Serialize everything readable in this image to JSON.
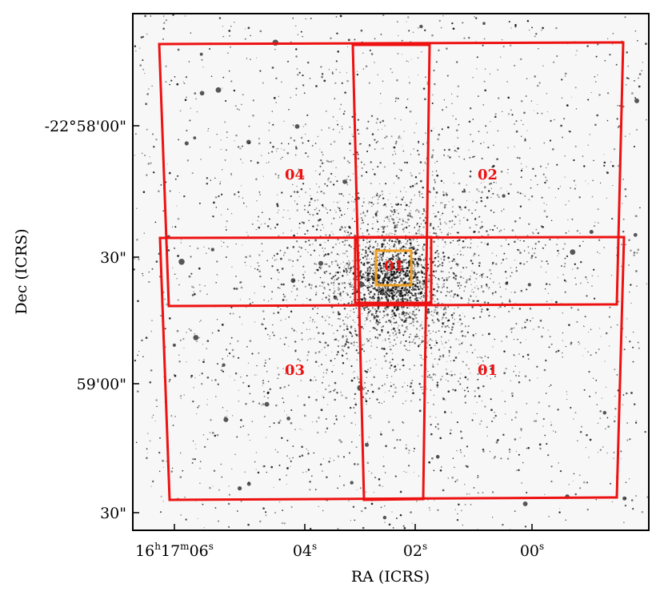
{
  "colors": {
    "field_outline": "#ee1111",
    "inner_outline": "#f0a020",
    "axis": "#000000",
    "stars": "#111111"
  },
  "axes": {
    "xlabel": "RA (ICRS)",
    "ylabel": "Dec (ICRS)",
    "x_ticks": [
      {
        "pre": "16",
        "sup1": "h",
        "mid1": "17",
        "sup2": "m",
        "mid2": "06",
        "sup3": "s"
      },
      {
        "pre": "04",
        "sup3": "s"
      },
      {
        "pre": "02",
        "sup3": "s"
      },
      {
        "pre": "00",
        "sup3": "s"
      }
    ],
    "y_ticks": [
      "-22°58'00\"",
      "30\"",
      "59'00\"",
      "30\""
    ]
  },
  "fields": [
    {
      "label": "04"
    },
    {
      "label": "02"
    },
    {
      "label": "03"
    },
    {
      "label": "01"
    }
  ],
  "inner_field": {
    "label": "01"
  }
}
